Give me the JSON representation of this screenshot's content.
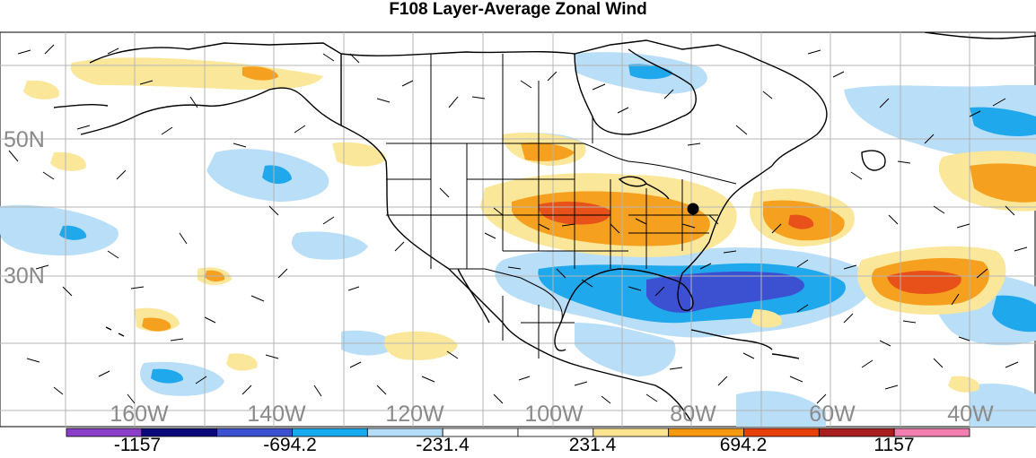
{
  "title": "F108 Layer-Average Zonal Wind",
  "lat_labels": [
    "50N",
    "30N"
  ],
  "lon_labels": [
    "160W",
    "140W",
    "120W",
    "100W",
    "80W",
    "60W",
    "40W"
  ],
  "colorbar": {
    "labels": [
      "-1157",
      "-694.2",
      "-231.4",
      "231.4",
      "694.2",
      "1157"
    ],
    "colors": [
      "#8b3fc8",
      "#0a0a78",
      "#3c50d2",
      "#16aaee",
      "#b4def8",
      "#ffffff",
      "#ffffff",
      "#fce490",
      "#f59a10",
      "#e8400a",
      "#a81e1e",
      "#f37eb0"
    ]
  },
  "map_colors": {
    "light_blue": "#b9def8",
    "blue": "#1fa8ec",
    "dark_blue": "#3c50d2",
    "light_yellow": "#fbe79a",
    "orange": "#f6a020",
    "red_orange": "#e8521a",
    "grid": "#b4b4b4",
    "coast": "#000000"
  }
}
